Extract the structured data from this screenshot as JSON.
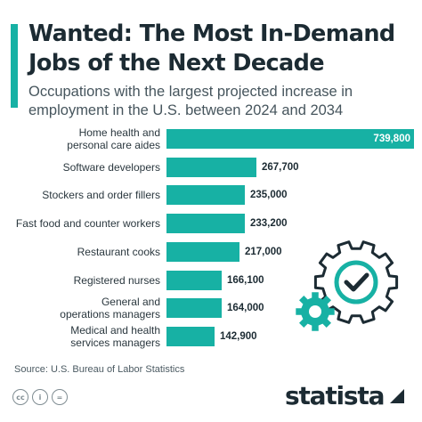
{
  "title": "Wanted: The Most In-Demand Jobs of the Next Decade",
  "subtitle": "Occupations with the largest projected increase in employment in the U.S. between 2024 and 2034",
  "source": "Source: U.S. Bureau of Labor Statistics",
  "brand": "statista",
  "license_icons": [
    "cc",
    "attribution",
    "no-derivatives"
  ],
  "colors": {
    "bar": "#17b1a4",
    "accent": "#17b1a4",
    "gear": "#17b1a4",
    "gear_outline": "#1c2b33"
  },
  "chart_data": {
    "type": "bar",
    "orientation": "horizontal",
    "categories": [
      "Home health and\npersonal care aides",
      "Software developers",
      "Stockers and order fillers",
      "Fast food and counter workers",
      "Restaurant cooks",
      "Registered nurses",
      "General and\noperations managers",
      "Medical and health\nservices managers"
    ],
    "values": [
      739800,
      267700,
      235000,
      233200,
      217000,
      166100,
      164000,
      142900
    ],
    "value_labels": [
      "739,800",
      "267,700",
      "235,000",
      "233,200",
      "217,000",
      "166,100",
      "164,000",
      "142,900"
    ],
    "xlim": [
      0,
      739800
    ],
    "grid": false,
    "legend": "none"
  }
}
